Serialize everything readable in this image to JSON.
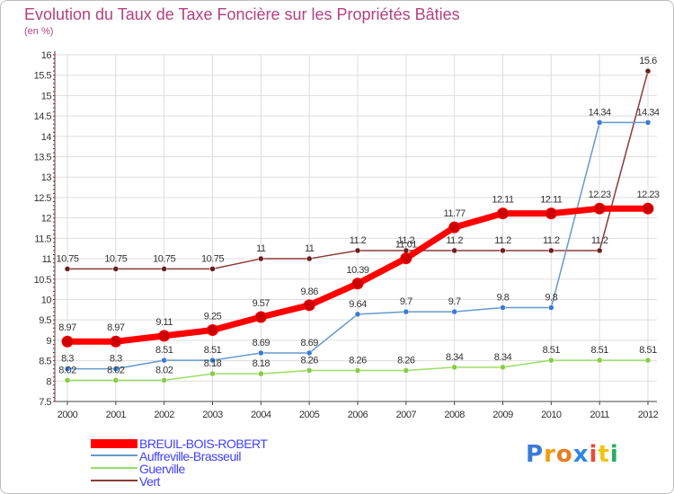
{
  "title": "Evolution du Taux de Taxe Foncière sur les Propriétés Bâties",
  "subtitle": "(en %)",
  "logo_text": "Proxiti",
  "chart_data": {
    "type": "line",
    "title": "Evolution du Taux de Taxe Foncière sur les Propriétés Bâties",
    "ylabel": "(en %)",
    "xlabel": "",
    "x": [
      "2000",
      "2001",
      "2002",
      "2003",
      "2004",
      "2005",
      "2006",
      "2007",
      "2008",
      "2009",
      "2010",
      "2011",
      "2012"
    ],
    "ylim": [
      7.5,
      16
    ],
    "yticks": [
      "7.5",
      "8",
      "8.5",
      "9",
      "9.5",
      "10",
      "10.5",
      "11",
      "11.5",
      "12",
      "12.5",
      "13",
      "13.5",
      "14",
      "14.5",
      "15",
      "15.5",
      "16"
    ],
    "grid": true,
    "legend_position": "bottom-left",
    "series": [
      {
        "name": "BREUIL-BOIS-ROBERT",
        "color": "#ff0000",
        "values": [
          8.97,
          8.97,
          9.11,
          9.25,
          9.57,
          9.86,
          10.39,
          11.01,
          11.77,
          12.11,
          12.11,
          12.23,
          12.23
        ],
        "labels": [
          "8.97",
          "8.97",
          "9.11",
          "9.25",
          "9.57",
          "9.86",
          "10.39",
          "11.01",
          "11.77",
          "12.11",
          "12.11",
          "12.23",
          "12.23"
        ]
      },
      {
        "name": "Auffreville-Brasseuil",
        "color": "#6699cc",
        "values": [
          8.3,
          8.3,
          8.51,
          8.51,
          8.69,
          8.69,
          9.64,
          9.7,
          9.7,
          9.8,
          9.8,
          14.34,
          14.34
        ],
        "labels": [
          "8.3",
          "8.3",
          "8.51",
          "8.51",
          "8.69",
          "8.69",
          "9.64",
          "9.7",
          "9.7",
          "9.8",
          "9.8",
          "14.34",
          "14.34"
        ]
      },
      {
        "name": "Guerville",
        "color": "#99dd66",
        "values": [
          8.02,
          8.02,
          8.02,
          8.18,
          8.18,
          8.26,
          8.26,
          8.26,
          8.34,
          8.34,
          8.51,
          8.51,
          8.51
        ],
        "labels": [
          "8.02",
          "8.02",
          "8.02",
          "8.18",
          "8.18",
          "8.26",
          "8.26",
          "8.26",
          "8.34",
          "8.34",
          "8.51",
          "8.51",
          "8.51"
        ]
      },
      {
        "name": "Vert",
        "color": "#8b3a3a",
        "values": [
          10.75,
          10.75,
          10.75,
          10.75,
          11,
          11,
          11.2,
          11.2,
          11.2,
          11.2,
          11.2,
          11.2,
          15.6
        ],
        "labels": [
          "10.75",
          "10.75",
          "10.75",
          "10.75",
          "11",
          "11",
          "11.2",
          "11.2",
          "11.2",
          "11.2",
          "11.2",
          "11.2",
          "15.6"
        ]
      }
    ]
  },
  "colors": {
    "title": "#b4417f",
    "legend_text": "#4040ff",
    "grid": "#dddddd",
    "tick_text": "#333333",
    "axis_minor": "#cc0000"
  }
}
